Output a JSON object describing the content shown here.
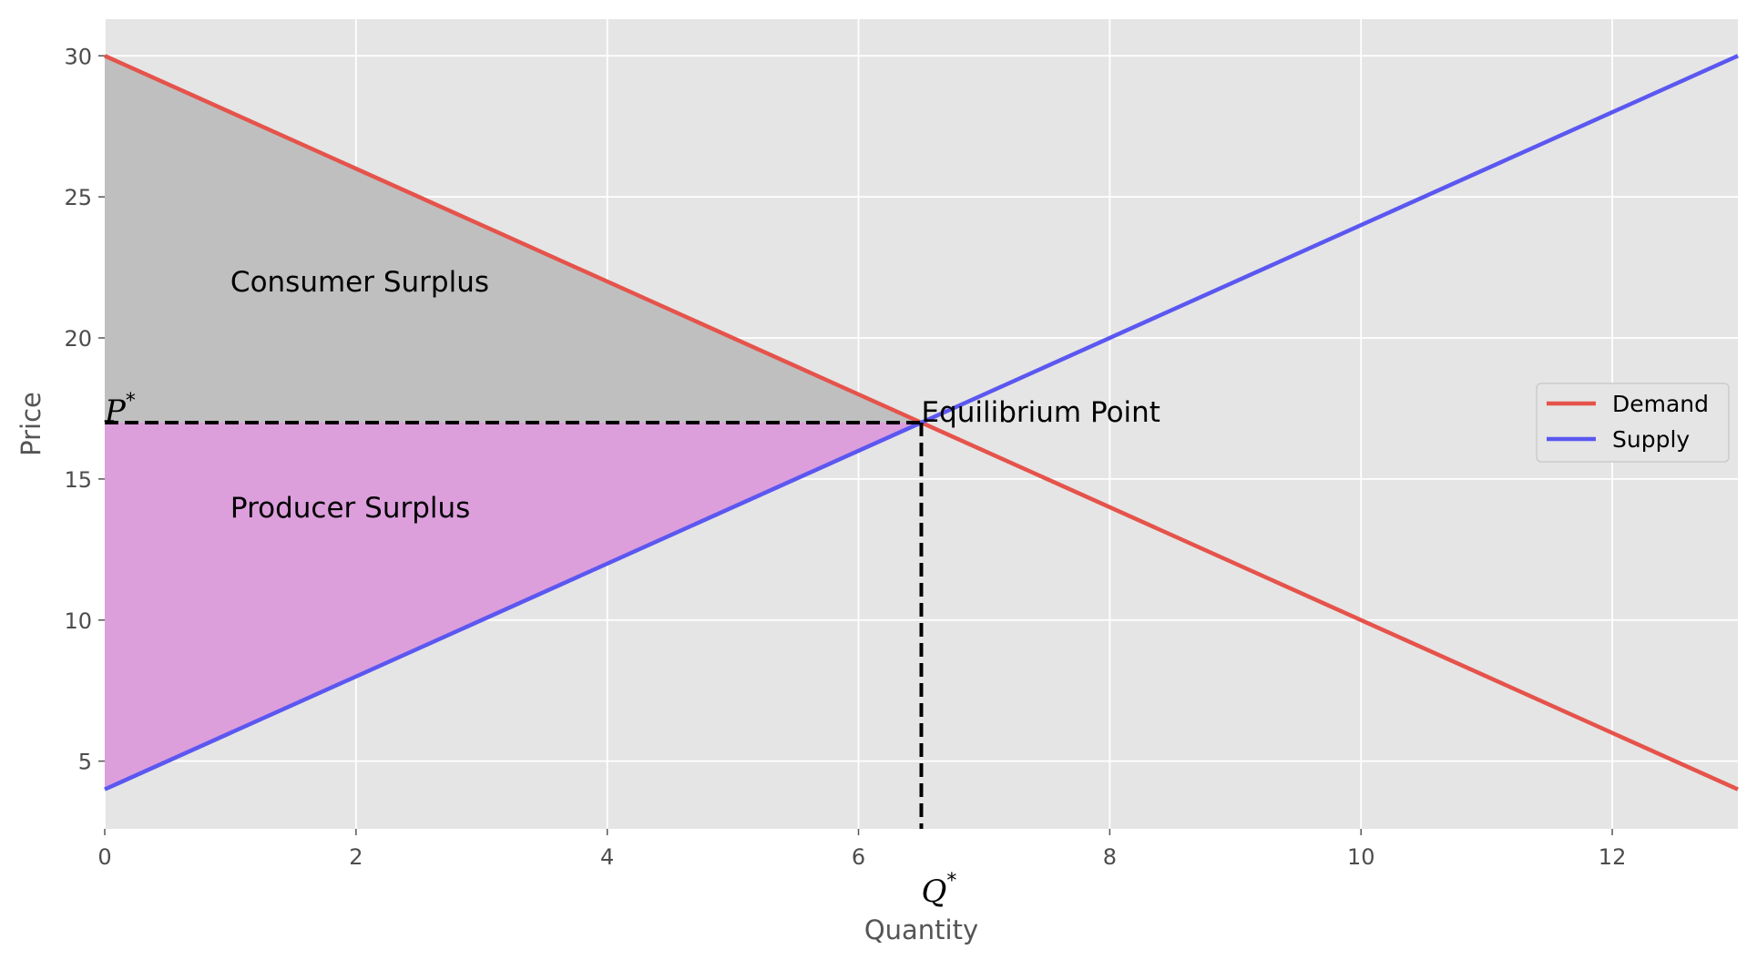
{
  "chart_data": {
    "type": "line",
    "xlabel": "Quantity",
    "ylabel": "Price",
    "xlim": [
      0,
      13
    ],
    "ylim": [
      2.6,
      31.3
    ],
    "xticks": [
      0,
      2,
      4,
      6,
      8,
      10,
      12
    ],
    "yticks": [
      5,
      10,
      15,
      20,
      25,
      30
    ],
    "grid": true,
    "legend_position": "center-right",
    "series": [
      {
        "name": "Demand",
        "color": "#e5534b",
        "x": [
          0,
          13
        ],
        "y": [
          30,
          4
        ]
      },
      {
        "name": "Supply",
        "color": "#5b57f0",
        "x": [
          0,
          13
        ],
        "y": [
          4,
          30
        ]
      }
    ],
    "equilibrium": {
      "q": 6.5,
      "p": 17,
      "label": "Equilibrium Point"
    },
    "areas": [
      {
        "label": "Consumer Surplus",
        "color": "#bfbfbf"
      },
      {
        "label": "Producer Surplus",
        "color": "#dc9fdc"
      }
    ],
    "markers": {
      "p_star": {
        "base": "P",
        "sup": "*"
      },
      "q_star": {
        "base": "Q",
        "sup": "*"
      }
    }
  }
}
